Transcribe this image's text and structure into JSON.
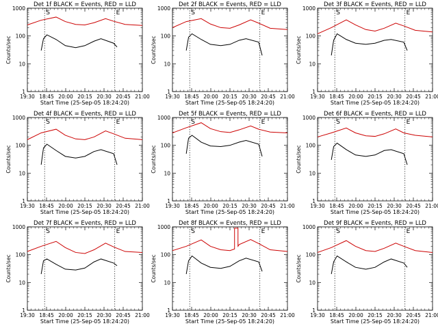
{
  "figure": {
    "x_tick_labels": [
      "19:30",
      "18:45",
      "20:00",
      "20:15",
      "20:30",
      "20:45",
      "21:00"
    ],
    "y_tick_labels": [
      "1",
      "10",
      "100",
      "1000"
    ],
    "marker_s": "S",
    "marker_e": "E",
    "colors": {
      "events": "#000000",
      "lld": "#cc0000"
    }
  },
  "chart_data": [
    {
      "type": "line",
      "title": "Det 1f BLACK = Events, RED = LLD",
      "xlabel": "Start Time (25-Sep-05 18:24:20)",
      "ylabel": "Counts/sec",
      "ylim": [
        1,
        1000
      ],
      "y_scale": "log",
      "x_ticks": [
        "19:30",
        "18:45",
        "20:00",
        "20:15",
        "20:30",
        "20:45",
        "21:00"
      ],
      "series": [
        {
          "color": "#cc0000",
          "x": [
            0.0,
            0.12,
            0.25,
            0.33,
            0.42,
            0.5,
            0.58,
            0.68,
            0.75,
            0.85,
            1.0
          ],
          "values": [
            250,
            370,
            480,
            330,
            260,
            250,
            300,
            420,
            340,
            260,
            240
          ]
        },
        {
          "color": "#000000",
          "x": [
            0.12,
            0.14,
            0.17,
            0.25,
            0.33,
            0.42,
            0.5,
            0.58,
            0.64,
            0.75,
            0.78
          ],
          "values": [
            30,
            80,
            110,
            75,
            45,
            38,
            45,
            65,
            80,
            55,
            40
          ]
        }
      ]
    },
    {
      "type": "line",
      "title": "Det 2f BLACK = Events, RED = LLD",
      "xlabel": "Start Time (25-Sep-05 18:24:20)",
      "ylabel": "Counts/sec",
      "ylim": [
        1,
        1000
      ],
      "y_scale": "log",
      "x_ticks": [
        "19:30",
        "18:45",
        "20:00",
        "20:15",
        "20:30",
        "20:45",
        "21:00"
      ],
      "series": [
        {
          "color": "#cc0000",
          "x": [
            0.0,
            0.12,
            0.25,
            0.33,
            0.42,
            0.5,
            0.58,
            0.68,
            0.75,
            0.85,
            1.0
          ],
          "values": [
            200,
            330,
            420,
            270,
            200,
            190,
            250,
            380,
            290,
            190,
            170
          ]
        },
        {
          "color": "#000000",
          "x": [
            0.12,
            0.14,
            0.17,
            0.25,
            0.33,
            0.42,
            0.5,
            0.58,
            0.64,
            0.75,
            0.78
          ],
          "values": [
            30,
            90,
            120,
            75,
            50,
            45,
            50,
            70,
            80,
            60,
            20
          ]
        }
      ]
    },
    {
      "type": "line",
      "title": "Det 3f BLACK = Events, RED = LLD",
      "xlabel": "Start Time (25-Sep-05 18:24:20)",
      "ylabel": "Counts/sec",
      "ylim": [
        1,
        1000
      ],
      "y_scale": "log",
      "x_ticks": [
        "19:30",
        "18:45",
        "20:00",
        "20:15",
        "20:30",
        "20:45",
        "21:00"
      ],
      "series": [
        {
          "color": "#cc0000",
          "x": [
            0.0,
            0.12,
            0.25,
            0.33,
            0.42,
            0.5,
            0.58,
            0.68,
            0.75,
            0.85,
            1.0
          ],
          "values": [
            120,
            200,
            380,
            250,
            170,
            150,
            190,
            290,
            230,
            160,
            140
          ]
        },
        {
          "color": "#000000",
          "x": [
            0.12,
            0.14,
            0.17,
            0.25,
            0.33,
            0.42,
            0.5,
            0.58,
            0.64,
            0.75,
            0.78
          ],
          "values": [
            20,
            70,
            120,
            75,
            55,
            50,
            55,
            70,
            75,
            60,
            30
          ]
        }
      ]
    },
    {
      "type": "line",
      "title": "Det 4f BLACK = Events, RED = LLD",
      "xlabel": "Start Time (25-Sep-05 18:24:20)",
      "ylabel": "Counts/sec",
      "ylim": [
        1,
        1000
      ],
      "y_scale": "log",
      "x_ticks": [
        "19:30",
        "18:45",
        "20:00",
        "20:15",
        "20:30",
        "20:45",
        "21:00"
      ],
      "series": [
        {
          "color": "#cc0000",
          "x": [
            0.0,
            0.12,
            0.25,
            0.33,
            0.42,
            0.5,
            0.58,
            0.68,
            0.75,
            0.85,
            1.0
          ],
          "values": [
            160,
            280,
            380,
            230,
            170,
            160,
            200,
            330,
            260,
            180,
            160
          ]
        },
        {
          "color": "#000000",
          "x": [
            0.12,
            0.14,
            0.17,
            0.25,
            0.33,
            0.42,
            0.5,
            0.58,
            0.64,
            0.75,
            0.78
          ],
          "values": [
            20,
            80,
            110,
            65,
            40,
            35,
            40,
            60,
            70,
            50,
            20
          ]
        }
      ]
    },
    {
      "type": "line",
      "title": "Det 5f BLACK = Events, RED = LLD",
      "xlabel": "Start Time (25-Sep-05 18:24:20)",
      "ylabel": "Counts/sec",
      "ylim": [
        1,
        1000
      ],
      "y_scale": "log",
      "x_ticks": [
        "19:30",
        "18:45",
        "20:00",
        "20:15",
        "20:30",
        "20:45",
        "21:00"
      ],
      "series": [
        {
          "color": "#cc0000",
          "x": [
            0.0,
            0.12,
            0.25,
            0.33,
            0.42,
            0.5,
            0.58,
            0.68,
            0.75,
            0.85,
            1.0
          ],
          "values": [
            280,
            430,
            650,
            400,
            310,
            290,
            360,
            500,
            380,
            300,
            280
          ]
        },
        {
          "color": "#000000",
          "x": [
            0.12,
            0.14,
            0.17,
            0.25,
            0.33,
            0.42,
            0.5,
            0.58,
            0.64,
            0.75,
            0.78
          ],
          "values": [
            50,
            180,
            230,
            130,
            95,
            90,
            100,
            130,
            150,
            110,
            40
          ]
        }
      ]
    },
    {
      "type": "line",
      "title": "Det 6f BLACK = Events, RED = LLD",
      "xlabel": "Start Time (25-Sep-05 18:24:20)",
      "ylabel": "Counts/sec",
      "ylim": [
        1,
        1000
      ],
      "y_scale": "log",
      "x_ticks": [
        "19:30",
        "18:45",
        "20:00",
        "20:15",
        "20:30",
        "20:45",
        "21:00"
      ],
      "series": [
        {
          "color": "#cc0000",
          "x": [
            0.0,
            0.12,
            0.25,
            0.33,
            0.42,
            0.5,
            0.58,
            0.68,
            0.75,
            0.85,
            1.0
          ],
          "values": [
            200,
            280,
            420,
            280,
            220,
            210,
            260,
            390,
            280,
            230,
            200
          ]
        },
        {
          "color": "#000000",
          "x": [
            0.12,
            0.14,
            0.17,
            0.25,
            0.33,
            0.42,
            0.5,
            0.58,
            0.64,
            0.75,
            0.78
          ],
          "values": [
            30,
            90,
            120,
            70,
            45,
            40,
            45,
            65,
            70,
            50,
            20
          ]
        }
      ]
    },
    {
      "type": "line",
      "title": "Det 7f BLACK = Events, RED = LLD",
      "xlabel": "Start Time (25-Sep-05 18:24:20)",
      "ylabel": "Counts/sec",
      "ylim": [
        1,
        1000
      ],
      "y_scale": "log",
      "x_ticks": [
        "19:30",
        "18:45",
        "20:00",
        "20:15",
        "20:30",
        "20:45",
        "21:00"
      ],
      "series": [
        {
          "color": "#cc0000",
          "x": [
            0.0,
            0.12,
            0.25,
            0.33,
            0.42,
            0.5,
            0.58,
            0.68,
            0.75,
            0.85,
            1.0
          ],
          "values": [
            130,
            200,
            300,
            180,
            120,
            110,
            150,
            260,
            190,
            130,
            120
          ]
        },
        {
          "color": "#000000",
          "x": [
            0.12,
            0.14,
            0.17,
            0.25,
            0.33,
            0.42,
            0.5,
            0.58,
            0.64,
            0.75,
            0.78
          ],
          "values": [
            20,
            60,
            70,
            45,
            30,
            28,
            33,
            55,
            70,
            50,
            40
          ]
        }
      ]
    },
    {
      "type": "line",
      "title": "Det 8f BLACK = Events, RED = LLD",
      "xlabel": "Start Time (25-Sep-05 18:24:20)",
      "ylabel": "Counts/sec",
      "ylim": [
        1,
        1000
      ],
      "y_scale": "log",
      "x_ticks": [
        "19:30",
        "18:45",
        "20:00",
        "20:15",
        "20:30",
        "20:45",
        "21:00"
      ],
      "series": [
        {
          "color": "#cc0000",
          "x": [
            0.0,
            0.12,
            0.25,
            0.33,
            0.42,
            0.5,
            0.54,
            0.54,
            0.57,
            0.57,
            0.58,
            0.68,
            0.75,
            0.85,
            1.0
          ],
          "values": [
            140,
            200,
            340,
            200,
            150,
            140,
            160,
            900,
            900,
            200,
            230,
            350,
            250,
            150,
            130
          ]
        },
        {
          "color": "#000000",
          "x": [
            0.12,
            0.14,
            0.17,
            0.25,
            0.33,
            0.42,
            0.5,
            0.58,
            0.64,
            0.75,
            0.78
          ],
          "values": [
            20,
            60,
            90,
            50,
            35,
            32,
            38,
            60,
            75,
            55,
            25
          ]
        }
      ]
    },
    {
      "type": "line",
      "title": "Det 9f BLACK = Events, RED = LLD",
      "xlabel": "Start Time (25-Sep-05 18:24:20)",
      "ylabel": "Counts/sec",
      "ylim": [
        1,
        1000
      ],
      "y_scale": "log",
      "x_ticks": [
        "19:30",
        "18:45",
        "20:00",
        "20:15",
        "20:30",
        "20:45",
        "21:00"
      ],
      "series": [
        {
          "color": "#cc0000",
          "x": [
            0.0,
            0.12,
            0.25,
            0.33,
            0.42,
            0.5,
            0.58,
            0.68,
            0.75,
            0.85,
            1.0
          ],
          "values": [
            120,
            180,
            320,
            200,
            140,
            130,
            170,
            260,
            200,
            140,
            120
          ]
        },
        {
          "color": "#000000",
          "x": [
            0.12,
            0.14,
            0.17,
            0.25,
            0.33,
            0.42,
            0.5,
            0.58,
            0.64,
            0.75,
            0.78
          ],
          "values": [
            20,
            55,
            90,
            55,
            35,
            30,
            35,
            55,
            70,
            50,
            35
          ]
        }
      ]
    }
  ]
}
